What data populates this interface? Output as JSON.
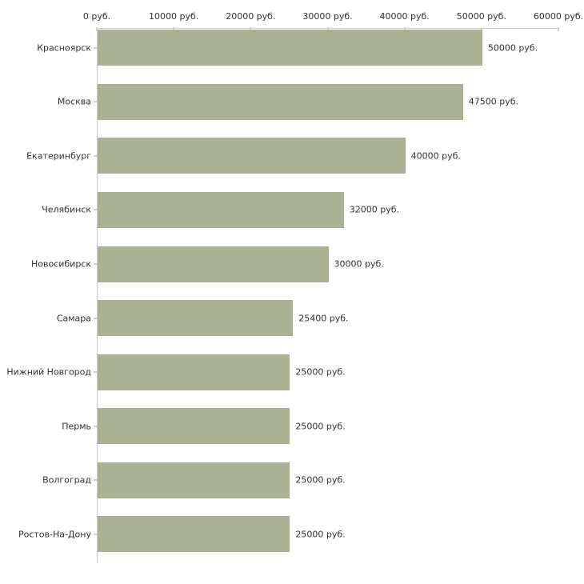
{
  "chart_data": {
    "type": "bar",
    "orientation": "horizontal",
    "categories": [
      "Красноярск",
      "Москва",
      "Екатеринбург",
      "Челябинск",
      "Новосибирск",
      "Самара",
      "Нижний Новгород",
      "Пермь",
      "Волгоград",
      "Ростов-На-Дону"
    ],
    "values": [
      50000,
      47500,
      40000,
      32000,
      30000,
      25400,
      25000,
      25000,
      25000,
      25000
    ],
    "value_labels": [
      "50000 руб.",
      "47500 руб.",
      "40000 руб.",
      "32000 руб.",
      "30000 руб.",
      "25400 руб.",
      "25000 руб.",
      "25000 руб.",
      "25000 руб.",
      "25000 руб."
    ],
    "unit": "руб.",
    "x_axis": {
      "position": "top",
      "min": 0,
      "max": 60000,
      "tick_step": 10000,
      "tick_values": [
        0,
        10000,
        20000,
        30000,
        40000,
        50000,
        60000
      ],
      "tick_labels": [
        "0 руб.",
        "10000 руб.",
        "20000 руб.",
        "30000 руб.",
        "40000 руб.",
        "50000 руб.",
        "60000 руб."
      ]
    },
    "title": "",
    "xlabel": "",
    "ylabel": "",
    "grid": false,
    "legend": false,
    "colors": {
      "bar": "#a9b294",
      "axis_line": "#c9c9c9",
      "tick_mark": "#d4d6bc",
      "text": "#333333",
      "background": "#ffffff"
    }
  }
}
